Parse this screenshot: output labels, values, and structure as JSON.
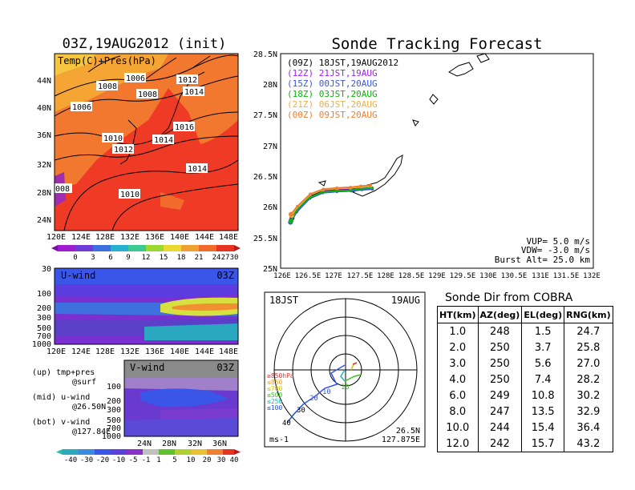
{
  "colors": {
    "warm": "#e83222",
    "hot": "#f04a28",
    "land": "#f07a30",
    "cool_band": "#f0a030",
    "purple": "#7a2fd0",
    "blue": "#3a56e8",
    "teal": "#20a8a8",
    "green": "#5ad21e",
    "track_09z": "#000000",
    "track_12z": "#a020f0",
    "track_15z": "#3a56e8",
    "track_18z": "#10b010",
    "track_21z": "#f0b040",
    "track_00z": "#f08030"
  },
  "surface_panel": {
    "title": "03Z,19AUG2012 (init)",
    "label": "Temp(C)+Pres(hPa)",
    "y_ticks": [
      "44N",
      "40N",
      "36N",
      "32N",
      "28N",
      "24N"
    ],
    "x_ticks": [
      "120E",
      "124E",
      "128E",
      "132E",
      "136E",
      "140E",
      "144E",
      "148E"
    ],
    "isobar_labels": [
      "1006",
      "1008",
      "1006",
      "1008",
      "1012",
      "1014",
      "1016",
      "1010",
      "1012",
      "1014",
      "1014",
      "1010",
      "008"
    ],
    "colorbar_ticks": [
      "0",
      "3",
      "6",
      "9",
      "12",
      "15",
      "18",
      "21",
      "24",
      "27",
      "30"
    ]
  },
  "uwind_panel": {
    "label": "U-wind",
    "time": "03Z",
    "y_ticks": [
      "30",
      "100",
      "200",
      "300",
      "500",
      "700",
      "1000"
    ],
    "x_ticks": [
      "120E",
      "124E",
      "128E",
      "132E",
      "136E",
      "140E",
      "144E",
      "148E"
    ]
  },
  "vwind_panel": {
    "label": "V-wind",
    "time": "03Z",
    "y_ticks": [
      "100",
      "200",
      "300",
      "500",
      "700",
      "1000"
    ],
    "x_ticks": [
      "24N",
      "28N",
      "32N",
      "36N"
    ],
    "colorbar_ticks": [
      "-40",
      "-30",
      "-20",
      "-10",
      "-5",
      "-1",
      "1",
      "5",
      "10",
      "20",
      "30",
      "40"
    ]
  },
  "legend_text": {
    "up": "(up) tmp+pres",
    "up_sub": "@surf",
    "mid": "(mid) u-wind",
    "mid_sub": "@26.50N",
    "bot": "(bot) v-wind",
    "bot_sub": "@127.84E"
  },
  "tracking": {
    "title": "Sonde Tracking Forecast",
    "vup": "VUP= 5.0 m/s",
    "vdw": "VDW= -3.0 m/s",
    "burst": "Burst Alt= 25.0 km"
  },
  "polar": {
    "time_label": "18JST",
    "date_label": "19AUG",
    "unit": "ms-1",
    "location_lat": "26.5N",
    "location_lon": "127.875E",
    "legend": [
      {
        "text": "≥850hPa",
        "color": "#e83030"
      },
      {
        "text": "≤850",
        "color": "#f0a020"
      },
      {
        "text": "≤700",
        "color": "#d8c000"
      },
      {
        "text": "≤500",
        "color": "#40c020"
      },
      {
        "text": "≤250",
        "color": "#20b8b8"
      },
      {
        "text": "≤100",
        "color": "#2050e0"
      }
    ],
    "speed_labels": [
      "10",
      "10",
      "20",
      "30",
      "40"
    ]
  },
  "sonde_dir": {
    "title": "Sonde Dir from COBRA",
    "headers": [
      "HT(km)",
      "AZ(deg)",
      "EL(deg)",
      "RNG(km)"
    ],
    "rows": [
      [
        "1.0",
        "248",
        "1.5",
        "24.7"
      ],
      [
        "2.0",
        "250",
        "3.7",
        "25.8"
      ],
      [
        "3.0",
        "250",
        "5.6",
        "27.0"
      ],
      [
        "4.0",
        "250",
        "7.4",
        "28.2"
      ],
      [
        "6.0",
        "249",
        "10.8",
        "30.2"
      ],
      [
        "8.0",
        "247",
        "13.5",
        "32.9"
      ],
      [
        "10.0",
        "244",
        "15.4",
        "36.4"
      ],
      [
        "12.0",
        "242",
        "15.7",
        "43.2"
      ]
    ]
  },
  "chart_data": {
    "type": "line",
    "title": "Sonde Tracking Forecast",
    "xlabel": "",
    "ylabel": "",
    "xlim": [
      126,
      132
    ],
    "ylim": [
      25,
      28.5
    ],
    "x_ticks": [
      "126E",
      "126.5E",
      "127E",
      "127.5E",
      "128E",
      "128.5E",
      "129E",
      "129.5E",
      "130E",
      "130.5E",
      "131E",
      "131.5E",
      "132E"
    ],
    "y_ticks": [
      "25N",
      "25.5N",
      "26N",
      "26.5N",
      "27N",
      "27.5N",
      "28N",
      "28.5N"
    ],
    "legend_position": "top-left",
    "series": [
      {
        "name": "(09Z) 18JST,19AUG2012",
        "color": "#000000",
        "x": [
          126.22,
          126.35,
          126.6,
          126.85,
          127.1,
          127.35,
          127.55,
          127.72
        ],
        "y": [
          25.82,
          25.98,
          26.18,
          26.27,
          26.29,
          26.3,
          26.33,
          26.34
        ]
      },
      {
        "name": "(12Z) 21JST,19AUG",
        "color": "#a020f0",
        "x": [
          126.2,
          126.33,
          126.58,
          126.83,
          127.1,
          127.36,
          127.56,
          127.74
        ],
        "y": [
          25.78,
          25.95,
          26.16,
          26.25,
          26.27,
          26.28,
          26.3,
          26.31
        ]
      },
      {
        "name": "(15Z) 00JST,20AUG",
        "color": "#3a56e8",
        "x": [
          126.19,
          126.31,
          126.56,
          126.81,
          127.08,
          127.35,
          127.56,
          127.76
        ],
        "y": [
          25.75,
          25.92,
          26.14,
          26.23,
          26.25,
          26.26,
          26.28,
          26.29
        ]
      },
      {
        "name": "(18Z) 03JST,20AUG",
        "color": "#10b010",
        "x": [
          126.2,
          126.3,
          126.55,
          126.8,
          127.06,
          127.33,
          127.55,
          127.76
        ],
        "y": [
          25.77,
          25.94,
          26.15,
          26.24,
          26.26,
          26.27,
          26.3,
          26.31
        ]
      },
      {
        "name": "(21Z) 06JST,20AUG",
        "color": "#f0b040",
        "x": [
          126.21,
          126.32,
          126.57,
          126.82,
          127.08,
          127.34,
          127.55,
          127.73
        ],
        "y": [
          25.86,
          26.0,
          26.2,
          26.28,
          26.3,
          26.31,
          26.33,
          26.34
        ]
      },
      {
        "name": "(00Z) 09JST,20AUG",
        "color": "#f08030",
        "x": [
          126.2,
          126.32,
          126.57,
          126.82,
          127.08,
          127.34,
          127.54,
          127.72
        ],
        "y": [
          25.88,
          26.01,
          26.21,
          26.29,
          26.31,
          26.32,
          26.34,
          26.35
        ]
      }
    ]
  }
}
